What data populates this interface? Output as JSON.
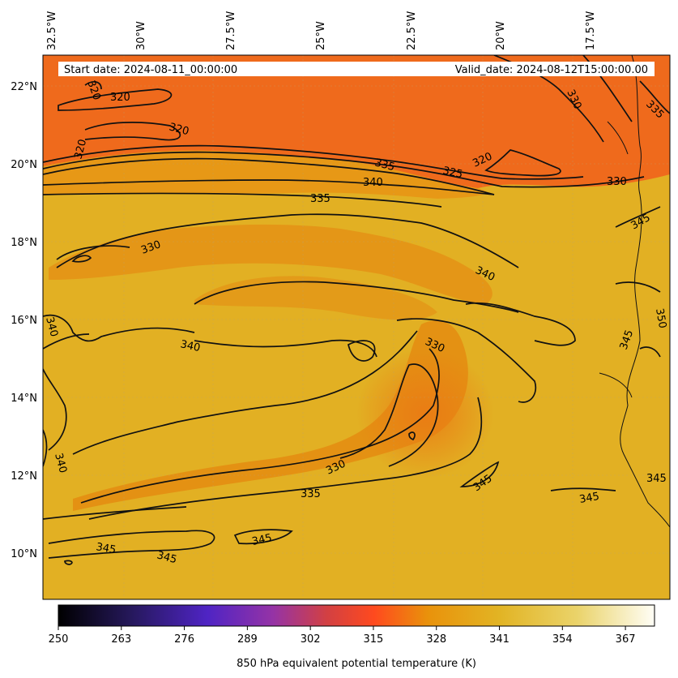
{
  "map": {
    "start_date_label": "Start date: 2024-08-11_00:00:00",
    "valid_date_label": "Valid_date: 2024-08-12T15:00:00.00",
    "lon_ticks": [
      "32.5°W",
      "30°W",
      "27.5°W",
      "25°W",
      "22.5°W",
      "20°W",
      "17.5°W"
    ],
    "lat_ticks": [
      "22°N",
      "20°N",
      "18°N",
      "16°N",
      "14°N",
      "12°N",
      "10°N"
    ],
    "contour_labels": [
      "320",
      "320",
      "320",
      "320",
      "320",
      "325",
      "330",
      "330",
      "335",
      "335",
      "335",
      "340",
      "340",
      "340",
      "340",
      "340",
      "330",
      "330",
      "330",
      "335",
      "345",
      "345",
      "345",
      "345",
      "345",
      "345",
      "345",
      "350",
      "345"
    ]
  },
  "colorbar": {
    "label": "850 hPa equivalent potential temperature (K)",
    "ticks": [
      "250",
      "263",
      "276",
      "289",
      "302",
      "315",
      "328",
      "341",
      "354",
      "367"
    ],
    "range": [
      250,
      373
    ],
    "colors": [
      "#000000",
      "#2a1a5e",
      "#5622c8",
      "#9b33a8",
      "#d4403f",
      "#ff4a20",
      "#e9960a",
      "#e3b522",
      "#e8d463",
      "#fffef6"
    ]
  }
}
